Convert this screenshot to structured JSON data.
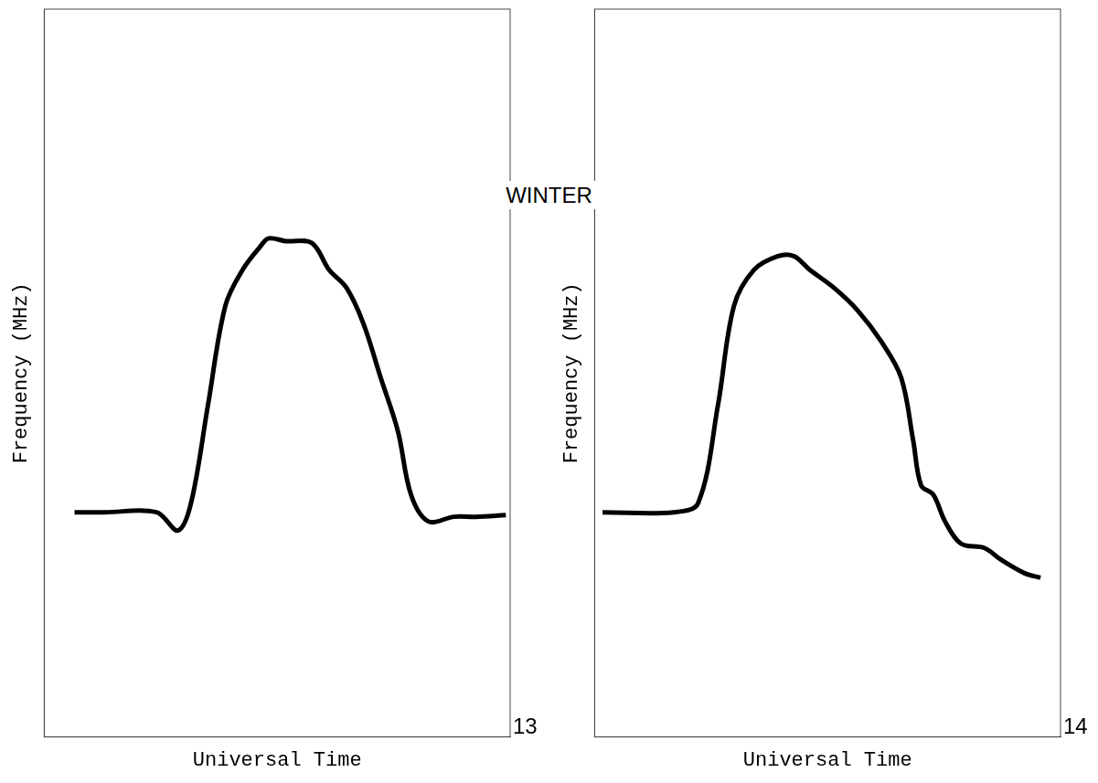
{
  "title": "WINTER",
  "chart_data": [
    {
      "type": "line",
      "annotation": "13",
      "x_label": "Universal Time",
      "y_label": "Frequency (MHz)",
      "color": "#000000",
      "xlim": [
        0,
        24
      ],
      "ylim": [
        0,
        16
      ],
      "tick_labels": false,
      "grid": false,
      "x": [
        1.56,
        3.11,
        5.78,
        6.89,
        7.56,
        8.44,
        9.33,
        10.22,
        11.11,
        11.56,
        12.44,
        13.78,
        14.67,
        15.56,
        16.44,
        17.33,
        18.22,
        18.89,
        19.78,
        21.11,
        22.22,
        23.78
      ],
      "values": [
        4.94,
        4.94,
        4.94,
        4.54,
        5.14,
        7.31,
        9.48,
        10.27,
        10.77,
        10.96,
        10.9,
        10.86,
        10.27,
        9.88,
        9.09,
        7.9,
        6.72,
        5.33,
        4.74,
        4.84,
        4.84,
        4.88
      ]
    },
    {
      "type": "line",
      "annotation": "14",
      "x_label": "Universal Time",
      "y_label": "Frequency (MHz)",
      "color": "#000000",
      "xlim": [
        0,
        24
      ],
      "ylim": [
        0,
        16
      ],
      "tick_labels": false,
      "grid": false,
      "x": [
        0.41,
        4.1,
        5.33,
        6.36,
        7.18,
        8.21,
        9.44,
        10.26,
        11.08,
        12.31,
        13.54,
        14.77,
        15.79,
        16.41,
        16.82,
        17.44,
        18.05,
        18.87,
        20.1,
        20.92,
        22.15,
        22.97
      ],
      "values": [
        4.94,
        4.94,
        5.14,
        7.31,
        9.48,
        10.27,
        10.57,
        10.57,
        10.27,
        9.88,
        9.38,
        8.69,
        7.9,
        6.52,
        5.53,
        5.33,
        4.74,
        4.25,
        4.15,
        3.9,
        3.6,
        3.5
      ]
    }
  ]
}
